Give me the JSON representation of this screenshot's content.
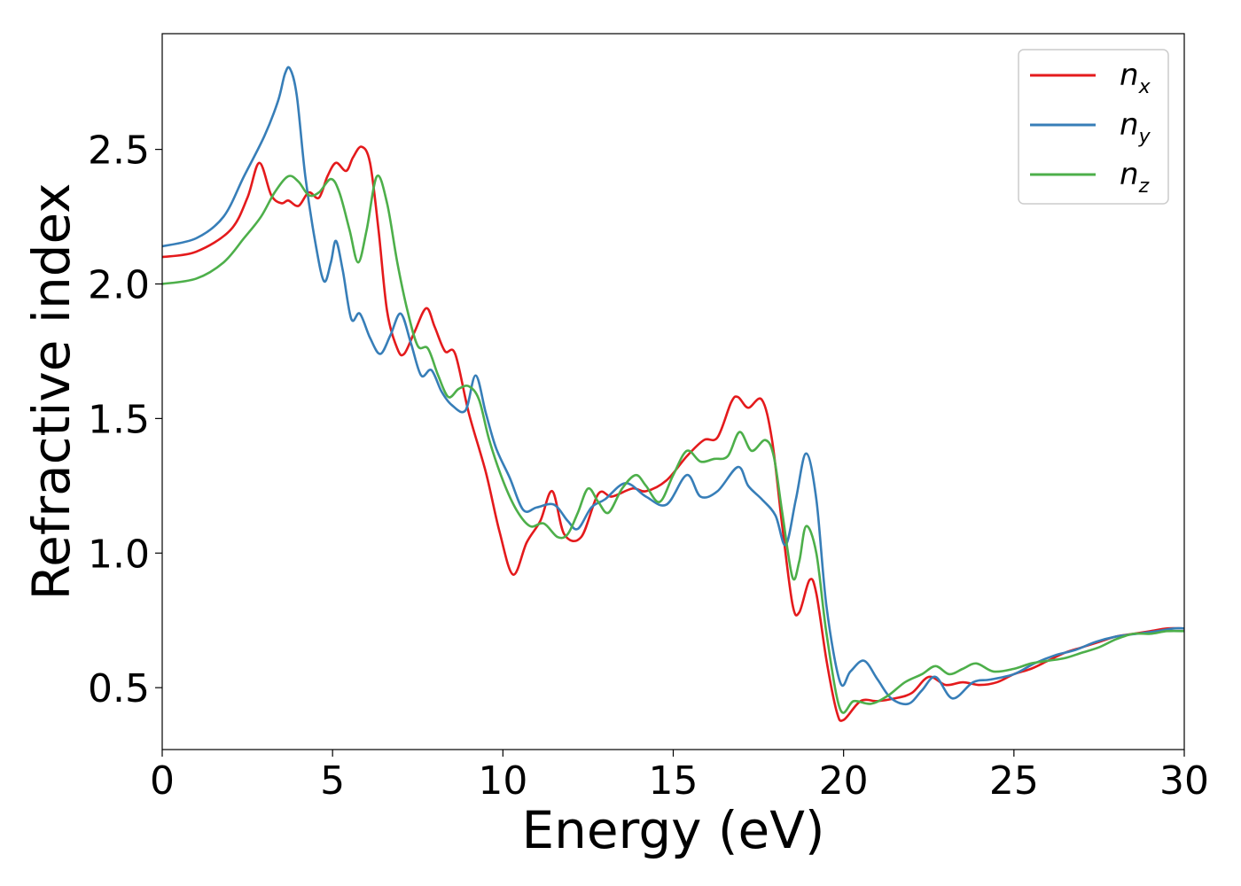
{
  "chart_data": {
    "type": "line",
    "title": "",
    "xlabel": "Energy (eV)",
    "ylabel": "Refractive index",
    "xlim": [
      0,
      30
    ],
    "ylim": [
      0.27,
      2.93
    ],
    "xticks": [
      0,
      5,
      10,
      15,
      20,
      25,
      30
    ],
    "xtick_labels": [
      "0",
      "5",
      "10",
      "15",
      "20",
      "25",
      "30"
    ],
    "yticks": [
      0.5,
      1.0,
      1.5,
      2.0,
      2.5
    ],
    "ytick_labels": [
      "0.5",
      "1.0",
      "1.5",
      "2.0",
      "2.5"
    ],
    "grid": false,
    "legend_position": "top-right",
    "series": [
      {
        "name": "n_x",
        "label_main": "n",
        "label_sub": "x",
        "color": "#e41a1c",
        "points": [
          [
            0,
            2.1
          ],
          [
            1,
            2.12
          ],
          [
            2,
            2.2
          ],
          [
            2.5,
            2.32
          ],
          [
            2.85,
            2.45
          ],
          [
            3.2,
            2.33
          ],
          [
            3.5,
            2.3
          ],
          [
            3.7,
            2.31
          ],
          [
            4.0,
            2.29
          ],
          [
            4.3,
            2.34
          ],
          [
            4.6,
            2.32
          ],
          [
            4.85,
            2.4
          ],
          [
            5.1,
            2.45
          ],
          [
            5.4,
            2.42
          ],
          [
            5.6,
            2.47
          ],
          [
            5.85,
            2.51
          ],
          [
            6.1,
            2.45
          ],
          [
            6.35,
            2.2
          ],
          [
            6.6,
            1.9
          ],
          [
            6.9,
            1.76
          ],
          [
            7.1,
            1.74
          ],
          [
            7.4,
            1.82
          ],
          [
            7.75,
            1.91
          ],
          [
            8.0,
            1.84
          ],
          [
            8.3,
            1.75
          ],
          [
            8.6,
            1.74
          ],
          [
            9.0,
            1.52
          ],
          [
            9.5,
            1.3
          ],
          [
            9.9,
            1.08
          ],
          [
            10.3,
            0.92
          ],
          [
            10.7,
            1.04
          ],
          [
            11.1,
            1.12
          ],
          [
            11.45,
            1.23
          ],
          [
            11.8,
            1.07
          ],
          [
            12.3,
            1.06
          ],
          [
            12.8,
            1.22
          ],
          [
            13.2,
            1.21
          ],
          [
            13.8,
            1.24
          ],
          [
            14.2,
            1.23
          ],
          [
            14.8,
            1.27
          ],
          [
            15.4,
            1.36
          ],
          [
            15.9,
            1.42
          ],
          [
            16.3,
            1.43
          ],
          [
            16.7,
            1.56
          ],
          [
            16.9,
            1.58
          ],
          [
            17.2,
            1.54
          ],
          [
            17.6,
            1.57
          ],
          [
            17.9,
            1.42
          ],
          [
            18.2,
            1.1
          ],
          [
            18.5,
            0.81
          ],
          [
            18.7,
            0.78
          ],
          [
            19.0,
            0.9
          ],
          [
            19.2,
            0.85
          ],
          [
            19.5,
            0.6
          ],
          [
            19.8,
            0.41
          ],
          [
            20.0,
            0.38
          ],
          [
            20.5,
            0.45
          ],
          [
            21.0,
            0.45
          ],
          [
            21.5,
            0.46
          ],
          [
            22.0,
            0.48
          ],
          [
            22.5,
            0.54
          ],
          [
            23.0,
            0.51
          ],
          [
            23.5,
            0.52
          ],
          [
            24.0,
            0.51
          ],
          [
            24.5,
            0.52
          ],
          [
            25.0,
            0.55
          ],
          [
            25.5,
            0.57
          ],
          [
            26.0,
            0.6
          ],
          [
            26.5,
            0.63
          ],
          [
            27.0,
            0.65
          ],
          [
            27.5,
            0.67
          ],
          [
            28.0,
            0.69
          ],
          [
            28.5,
            0.7
          ],
          [
            29.0,
            0.71
          ],
          [
            29.5,
            0.72
          ],
          [
            30.0,
            0.72
          ]
        ]
      },
      {
        "name": "n_y",
        "label_main": "n",
        "label_sub": "y",
        "color": "#377eb8",
        "points": [
          [
            0,
            2.14
          ],
          [
            1,
            2.17
          ],
          [
            1.8,
            2.25
          ],
          [
            2.4,
            2.4
          ],
          [
            3.0,
            2.55
          ],
          [
            3.4,
            2.68
          ],
          [
            3.6,
            2.78
          ],
          [
            3.75,
            2.8
          ],
          [
            3.95,
            2.7
          ],
          [
            4.2,
            2.4
          ],
          [
            4.5,
            2.15
          ],
          [
            4.75,
            2.01
          ],
          [
            4.95,
            2.08
          ],
          [
            5.1,
            2.16
          ],
          [
            5.3,
            2.05
          ],
          [
            5.55,
            1.87
          ],
          [
            5.8,
            1.89
          ],
          [
            6.1,
            1.8
          ],
          [
            6.4,
            1.74
          ],
          [
            6.7,
            1.81
          ],
          [
            7.0,
            1.89
          ],
          [
            7.3,
            1.78
          ],
          [
            7.6,
            1.66
          ],
          [
            7.9,
            1.68
          ],
          [
            8.2,
            1.6
          ],
          [
            8.5,
            1.55
          ],
          [
            8.9,
            1.53
          ],
          [
            9.2,
            1.66
          ],
          [
            9.5,
            1.52
          ],
          [
            9.8,
            1.39
          ],
          [
            10.2,
            1.28
          ],
          [
            10.6,
            1.16
          ],
          [
            11.0,
            1.17
          ],
          [
            11.5,
            1.18
          ],
          [
            11.9,
            1.12
          ],
          [
            12.2,
            1.09
          ],
          [
            12.6,
            1.17
          ],
          [
            13.0,
            1.2
          ],
          [
            13.6,
            1.26
          ],
          [
            14.2,
            1.21
          ],
          [
            14.8,
            1.18
          ],
          [
            15.4,
            1.29
          ],
          [
            15.8,
            1.21
          ],
          [
            16.3,
            1.23
          ],
          [
            16.9,
            1.32
          ],
          [
            17.2,
            1.25
          ],
          [
            17.6,
            1.2
          ],
          [
            18.0,
            1.14
          ],
          [
            18.3,
            1.03
          ],
          [
            18.6,
            1.2
          ],
          [
            18.9,
            1.37
          ],
          [
            19.2,
            1.2
          ],
          [
            19.5,
            0.8
          ],
          [
            19.9,
            0.52
          ],
          [
            20.2,
            0.56
          ],
          [
            20.6,
            0.6
          ],
          [
            21.0,
            0.53
          ],
          [
            21.4,
            0.46
          ],
          [
            21.9,
            0.44
          ],
          [
            22.3,
            0.49
          ],
          [
            22.7,
            0.54
          ],
          [
            23.2,
            0.46
          ],
          [
            23.8,
            0.52
          ],
          [
            24.3,
            0.53
          ],
          [
            25.0,
            0.55
          ],
          [
            25.6,
            0.59
          ],
          [
            26.2,
            0.62
          ],
          [
            26.8,
            0.64
          ],
          [
            27.4,
            0.67
          ],
          [
            28.0,
            0.69
          ],
          [
            28.6,
            0.7
          ],
          [
            29.2,
            0.71
          ],
          [
            29.7,
            0.72
          ],
          [
            30.0,
            0.72
          ]
        ]
      },
      {
        "name": "n_z",
        "label_main": "n",
        "label_sub": "z",
        "color": "#4daf4a",
        "points": [
          [
            0,
            2.0
          ],
          [
            1,
            2.02
          ],
          [
            1.8,
            2.08
          ],
          [
            2.4,
            2.17
          ],
          [
            2.9,
            2.25
          ],
          [
            3.3,
            2.34
          ],
          [
            3.7,
            2.4
          ],
          [
            4.0,
            2.38
          ],
          [
            4.3,
            2.33
          ],
          [
            4.6,
            2.34
          ],
          [
            4.95,
            2.39
          ],
          [
            5.2,
            2.34
          ],
          [
            5.5,
            2.2
          ],
          [
            5.75,
            2.08
          ],
          [
            6.0,
            2.2
          ],
          [
            6.3,
            2.4
          ],
          [
            6.6,
            2.3
          ],
          [
            6.9,
            2.08
          ],
          [
            7.2,
            1.9
          ],
          [
            7.5,
            1.77
          ],
          [
            7.8,
            1.76
          ],
          [
            8.1,
            1.66
          ],
          [
            8.4,
            1.58
          ],
          [
            8.7,
            1.61
          ],
          [
            9.0,
            1.62
          ],
          [
            9.3,
            1.57
          ],
          [
            9.6,
            1.42
          ],
          [
            10.0,
            1.27
          ],
          [
            10.4,
            1.16
          ],
          [
            10.8,
            1.1
          ],
          [
            11.2,
            1.11
          ],
          [
            11.6,
            1.06
          ],
          [
            11.9,
            1.07
          ],
          [
            12.2,
            1.15
          ],
          [
            12.5,
            1.24
          ],
          [
            12.8,
            1.19
          ],
          [
            13.1,
            1.15
          ],
          [
            13.5,
            1.24
          ],
          [
            13.9,
            1.29
          ],
          [
            14.2,
            1.25
          ],
          [
            14.6,
            1.19
          ],
          [
            15.0,
            1.29
          ],
          [
            15.4,
            1.38
          ],
          [
            15.8,
            1.34
          ],
          [
            16.2,
            1.35
          ],
          [
            16.6,
            1.36
          ],
          [
            16.95,
            1.45
          ],
          [
            17.3,
            1.38
          ],
          [
            17.7,
            1.42
          ],
          [
            17.95,
            1.36
          ],
          [
            18.2,
            1.15
          ],
          [
            18.5,
            0.91
          ],
          [
            18.7,
            0.97
          ],
          [
            18.9,
            1.1
          ],
          [
            19.2,
            1.0
          ],
          [
            19.5,
            0.7
          ],
          [
            19.9,
            0.42
          ],
          [
            20.3,
            0.45
          ],
          [
            20.8,
            0.44
          ],
          [
            21.3,
            0.47
          ],
          [
            21.8,
            0.52
          ],
          [
            22.3,
            0.55
          ],
          [
            22.7,
            0.58
          ],
          [
            23.1,
            0.55
          ],
          [
            23.5,
            0.57
          ],
          [
            23.9,
            0.59
          ],
          [
            24.4,
            0.56
          ],
          [
            25.0,
            0.57
          ],
          [
            25.5,
            0.59
          ],
          [
            26.0,
            0.6
          ],
          [
            26.5,
            0.61
          ],
          [
            27.0,
            0.63
          ],
          [
            27.5,
            0.65
          ],
          [
            28.0,
            0.68
          ],
          [
            28.5,
            0.7
          ],
          [
            29.0,
            0.7
          ],
          [
            29.5,
            0.71
          ],
          [
            30.0,
            0.71
          ]
        ]
      }
    ]
  }
}
